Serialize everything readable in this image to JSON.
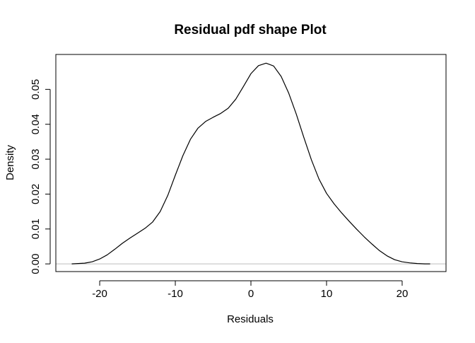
{
  "chart_data": {
    "type": "line",
    "title": "Residual pdf shape Plot",
    "xlabel": "Residuals",
    "ylabel": "Density",
    "xlim": [
      -25.8,
      25.8
    ],
    "ylim": [
      -0.0022,
      0.06
    ],
    "x_ticks": [
      -20,
      -10,
      0,
      10,
      20
    ],
    "x_tick_labels": [
      "-20",
      "-10",
      "0",
      "10",
      "20"
    ],
    "y_ticks": [
      0.0,
      0.01,
      0.02,
      0.03,
      0.04,
      0.05
    ],
    "y_tick_labels": [
      "0.00",
      "0.01",
      "0.02",
      "0.03",
      "0.04",
      "0.05"
    ],
    "zero_baseline": true,
    "grid": false,
    "colors": {
      "line": "#000000",
      "baseline": "#bebebe",
      "frame": "#000000"
    },
    "series": [
      {
        "x": [
          -23.7,
          -22,
          -21,
          -20,
          -19,
          -18,
          -17,
          -16,
          -15,
          -14,
          -13,
          -12,
          -11,
          -10,
          -9,
          -8,
          -7,
          -6,
          -5,
          -4,
          -3,
          -2,
          -1,
          0,
          1,
          2,
          3,
          4,
          5,
          6,
          7,
          8,
          9,
          10,
          11,
          12,
          13,
          14,
          15,
          16,
          17,
          18,
          19,
          20,
          21,
          22,
          23,
          23.7
        ],
        "y": [
          0.0,
          0.0002,
          0.0006,
          0.0014,
          0.0026,
          0.0042,
          0.0059,
          0.0074,
          0.0088,
          0.0102,
          0.012,
          0.015,
          0.0196,
          0.0254,
          0.031,
          0.0357,
          0.0389,
          0.0408,
          0.042,
          0.0431,
          0.0446,
          0.0472,
          0.0508,
          0.0545,
          0.0568,
          0.0575,
          0.0567,
          0.0537,
          0.0489,
          0.0429,
          0.0362,
          0.0298,
          0.0243,
          0.0202,
          0.0172,
          0.0146,
          0.0122,
          0.0099,
          0.0077,
          0.0057,
          0.0038,
          0.0023,
          0.0012,
          0.0006,
          0.0003,
          0.0001,
          0.0,
          0.0
        ]
      }
    ]
  }
}
